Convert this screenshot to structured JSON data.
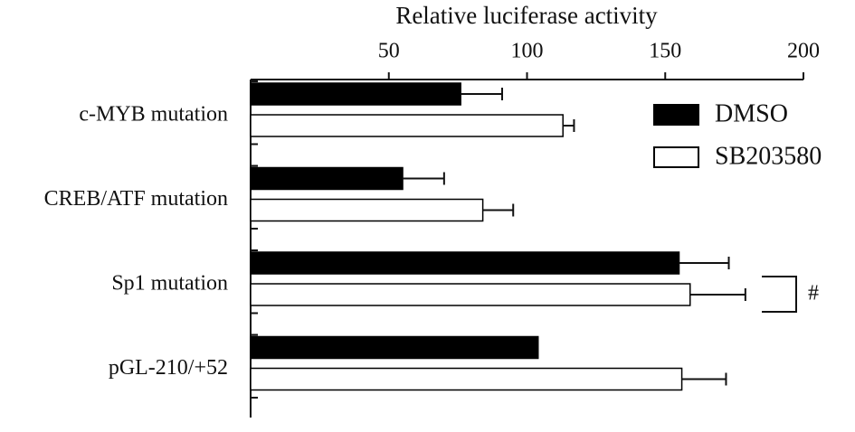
{
  "chart_data": {
    "type": "bar",
    "orientation": "horizontal",
    "x_label": "Relative luciferase activity",
    "categories": [
      "c-MYB mutation",
      "CREB/ATF mutation",
      "Sp1 mutation",
      "pGL-210/+52"
    ],
    "series": [
      {
        "name": "DMSO",
        "color": "#000000",
        "values": [
          76,
          55,
          155,
          104
        ],
        "errors": [
          15,
          15,
          18,
          null
        ]
      },
      {
        "name": "SB203580",
        "color": "#ffffff",
        "values": [
          113,
          84,
          159,
          156
        ],
        "errors": [
          4,
          11,
          20,
          16
        ]
      }
    ],
    "xlim": [
      0,
      200
    ],
    "xticks": [
      50,
      100,
      150,
      200
    ],
    "annotations": [
      "#"
    ]
  }
}
